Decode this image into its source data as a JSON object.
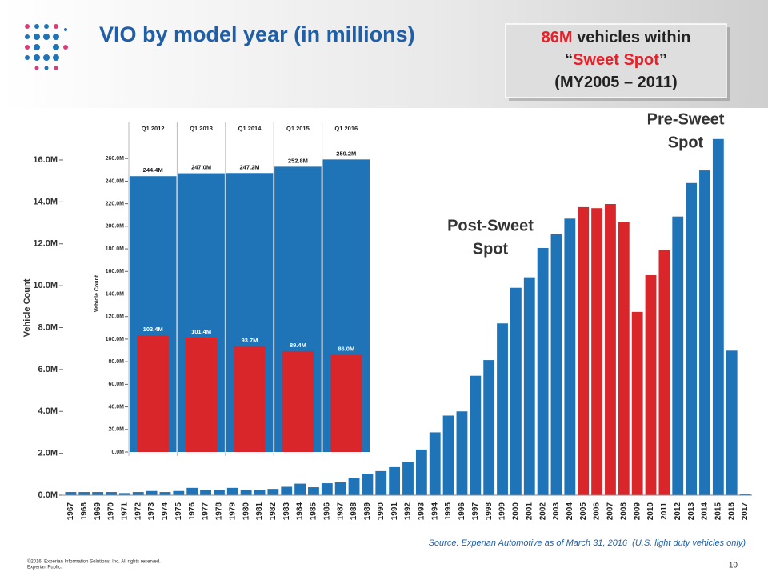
{
  "header": {
    "title": "VIO by model year (in millions)"
  },
  "callout": {
    "lines": [
      [
        {
          "text": "86M",
          "color": "#e8202a"
        },
        {
          "text": " vehicles within",
          "color": "#222222"
        }
      ],
      [
        {
          "text": "“",
          "color": "#222222"
        },
        {
          "text": "Sweet Spot",
          "color": "#e8202a"
        },
        {
          "text": "”",
          "color": "#222222"
        }
      ],
      [
        {
          "text": "(MY2005 – 2011)",
          "color": "#222222"
        }
      ]
    ]
  },
  "chart_data": [
    {
      "type": "bar",
      "ylabel": "Vehicle Count",
      "categories": [
        "1967",
        "1968",
        "1969",
        "1970",
        "1971",
        "1972",
        "1973",
        "1974",
        "1975",
        "1976",
        "1977",
        "1978",
        "1979",
        "1980",
        "1981",
        "1982",
        "1983",
        "1984",
        "1985",
        "1986",
        "1987",
        "1988",
        "1989",
        "1990",
        "1991",
        "1992",
        "1993",
        "1994",
        "1995",
        "1996",
        "1997",
        "1998",
        "1999",
        "2000",
        "2001",
        "2002",
        "2003",
        "2004",
        "2005",
        "2006",
        "2007",
        "2008",
        "2009",
        "2010",
        "2011",
        "2012",
        "2013",
        "2014",
        "2015",
        "2016",
        "2017"
      ],
      "values": [
        0.15,
        0.15,
        0.15,
        0.15,
        0.1,
        0.15,
        0.2,
        0.15,
        0.2,
        0.35,
        0.25,
        0.25,
        0.35,
        0.25,
        0.25,
        0.3,
        0.4,
        0.55,
        0.38,
        0.57,
        0.61,
        0.84,
        1.03,
        1.15,
        1.34,
        1.6,
        2.18,
        3.0,
        3.8,
        4.0,
        5.7,
        6.45,
        8.2,
        9.9,
        10.4,
        11.8,
        12.45,
        13.2,
        13.75,
        13.7,
        13.9,
        13.05,
        8.75,
        10.5,
        11.7,
        13.3,
        14.9,
        15.5,
        17.0,
        6.9,
        0.05
      ],
      "colors": [
        "#1f73b7",
        "#1f73b7",
        "#1f73b7",
        "#1f73b7",
        "#1f73b7",
        "#1f73b7",
        "#1f73b7",
        "#1f73b7",
        "#1f73b7",
        "#1f73b7",
        "#1f73b7",
        "#1f73b7",
        "#1f73b7",
        "#1f73b7",
        "#1f73b7",
        "#1f73b7",
        "#1f73b7",
        "#1f73b7",
        "#1f73b7",
        "#1f73b7",
        "#1f73b7",
        "#1f73b7",
        "#1f73b7",
        "#1f73b7",
        "#1f73b7",
        "#1f73b7",
        "#1f73b7",
        "#1f73b7",
        "#1f73b7",
        "#1f73b7",
        "#1f73b7",
        "#1f73b7",
        "#1f73b7",
        "#1f73b7",
        "#1f73b7",
        "#1f73b7",
        "#1f73b7",
        "#1f73b7",
        "#d9262b",
        "#d9262b",
        "#d9262b",
        "#d9262b",
        "#d9262b",
        "#d9262b",
        "#d9262b",
        "#1f73b7",
        "#1f73b7",
        "#1f73b7",
        "#1f73b7",
        "#1f73b7",
        "#1f73b7"
      ],
      "ylim": [
        0,
        18
      ],
      "yticks": [
        {
          "value": 0,
          "label": "0.0M"
        },
        {
          "value": 2,
          "label": "2.0M"
        },
        {
          "value": 4,
          "label": "4.0M"
        },
        {
          "value": 6,
          "label": "6.0M"
        },
        {
          "value": 8,
          "label": "8.0M"
        },
        {
          "value": 10,
          "label": "10.0M"
        },
        {
          "value": 12,
          "label": "12.0M"
        },
        {
          "value": 14,
          "label": "14.0M"
        },
        {
          "value": 16,
          "label": "16.0M"
        }
      ],
      "annotations": [
        {
          "lines": [
            "Pre-Sweet",
            "Spot"
          ]
        },
        {
          "lines": [
            "Post-Sweet",
            "Spot"
          ]
        }
      ]
    },
    {
      "type": "bar",
      "ylabel": "Vehicle Count",
      "categories": [
        "Q1 2012",
        "Q1 2013",
        "Q1 2014",
        "Q1 2015",
        "Q1 2016"
      ],
      "series": [
        {
          "color": "#1f73b7",
          "values": [
            244.4,
            247.0,
            247.2,
            252.8,
            259.2
          ],
          "value_labels": [
            "244.4M",
            "247.0M",
            "247.2M",
            "252.8M",
            "259.2M"
          ]
        },
        {
          "color": "#d9262b",
          "values": [
            103.4,
            101.4,
            93.7,
            89.4,
            86.0
          ],
          "value_labels": [
            "103.4M",
            "101.4M",
            "93.7M",
            "89.4M",
            "86.0M"
          ]
        }
      ],
      "ylim": [
        0,
        280
      ],
      "yticks": [
        {
          "value": 0,
          "label": "0.0M"
        },
        {
          "value": 20,
          "label": "20.0M"
        },
        {
          "value": 40,
          "label": "40.0M"
        },
        {
          "value": 60,
          "label": "60.0M"
        },
        {
          "value": 80,
          "label": "80.0M"
        },
        {
          "value": 100,
          "label": "100.0M"
        },
        {
          "value": 120,
          "label": "120.0M"
        },
        {
          "value": 140,
          "label": "140.0M"
        },
        {
          "value": 160,
          "label": "160.0M"
        },
        {
          "value": 180,
          "label": "180.0M"
        },
        {
          "value": 200,
          "label": "200.0M"
        },
        {
          "value": 220,
          "label": "220.0M"
        },
        {
          "value": 240,
          "label": "240.0M"
        },
        {
          "value": 260,
          "label": "260.0M"
        }
      ]
    }
  ],
  "footer": {
    "source": "Source: Experian Automotive as of March 31, 2016  (U.S. light duty vehicles only)",
    "copyright": "©2016  Experian Information Solutions, Inc. All rights reserved.",
    "classification": "Experian Public.",
    "page": "10"
  }
}
